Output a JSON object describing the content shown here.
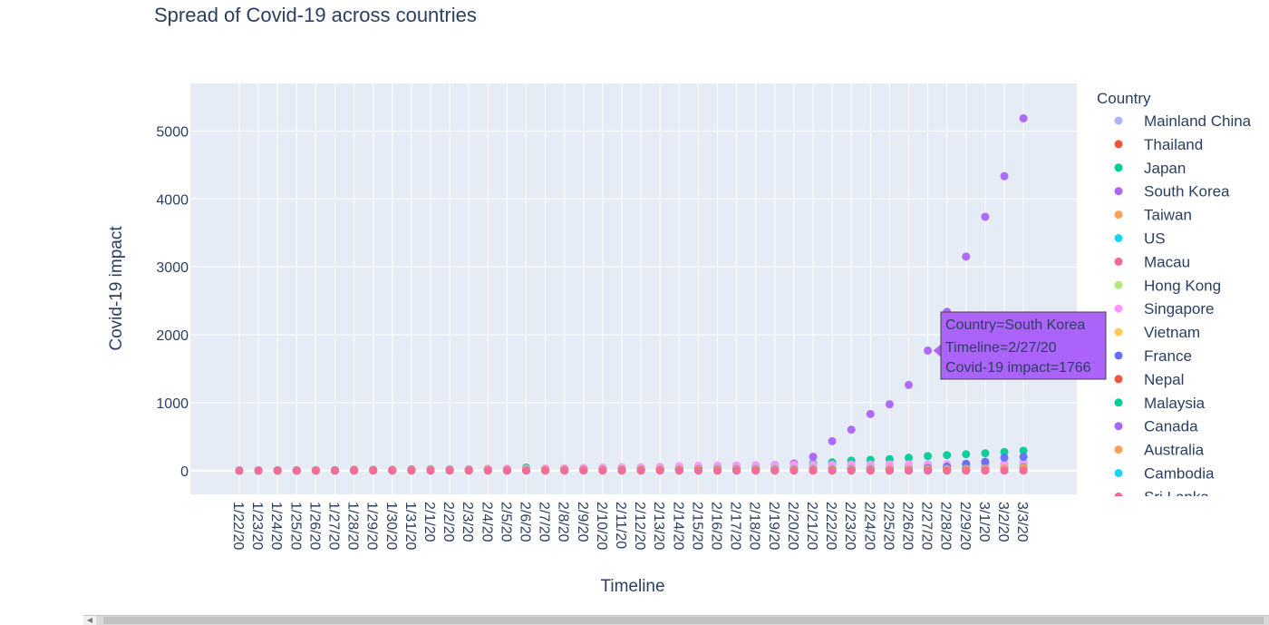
{
  "chart_data": {
    "type": "scatter",
    "title": "Spread of Covid-19 across countries",
    "xlabel": "Timeline",
    "ylabel": "Covid-19 impact",
    "ylim": [
      -350,
      5700
    ],
    "yticks": [
      0,
      1000,
      2000,
      3000,
      4000,
      5000
    ],
    "grid": true,
    "legend_title": "Country",
    "legend_position": "right",
    "categories": [
      "1/22/20",
      "1/23/20",
      "1/24/20",
      "1/25/20",
      "1/26/20",
      "1/27/20",
      "1/28/20",
      "1/29/20",
      "1/30/20",
      "1/31/20",
      "2/1/20",
      "2/2/20",
      "2/3/20",
      "2/4/20",
      "2/5/20",
      "2/6/20",
      "2/7/20",
      "2/8/20",
      "2/9/20",
      "2/10/20",
      "2/11/20",
      "2/12/20",
      "2/13/20",
      "2/14/20",
      "2/15/20",
      "2/16/20",
      "2/17/20",
      "2/18/20",
      "2/19/20",
      "2/20/20",
      "2/21/20",
      "2/22/20",
      "2/23/20",
      "2/24/20",
      "2/25/20",
      "2/26/20",
      "2/27/20",
      "2/28/20",
      "2/29/20",
      "3/1/20",
      "3/2/20",
      "3/3/20"
    ],
    "series": [
      {
        "name": "Mainland China",
        "color": "#aab4f7",
        "legend_dimmed": true,
        "values": []
      },
      {
        "name": "Thailand",
        "color": "#ef553b",
        "values": [
          2,
          3,
          5,
          7,
          8,
          8,
          14,
          14,
          14,
          19,
          19,
          19,
          19,
          25,
          25,
          25,
          25,
          32,
          32,
          32,
          33,
          33,
          33,
          33,
          34,
          34,
          35,
          35,
          35,
          35,
          35,
          35,
          35,
          35,
          37,
          40,
          40,
          41,
          42,
          42,
          43,
          43
        ]
      },
      {
        "name": "Japan",
        "color": "#00cc96",
        "values": [
          2,
          1,
          2,
          2,
          4,
          4,
          7,
          7,
          11,
          15,
          20,
          20,
          20,
          22,
          22,
          45,
          25,
          25,
          26,
          26,
          26,
          28,
          28,
          29,
          43,
          59,
          66,
          74,
          84,
          94,
          105,
          122,
          147,
          159,
          170,
          189,
          214,
          228,
          241,
          256,
          274,
          293
        ]
      },
      {
        "name": "South Korea",
        "color": "#ab63fa",
        "values": [
          1,
          1,
          2,
          2,
          3,
          4,
          4,
          4,
          4,
          11,
          12,
          15,
          15,
          16,
          19,
          23,
          24,
          24,
          25,
          27,
          28,
          28,
          28,
          28,
          28,
          29,
          30,
          31,
          51,
          104,
          204,
          433,
          602,
          833,
          977,
          1261,
          1766,
          2337,
          3150,
          3736,
          4335,
          5186
        ]
      },
      {
        "name": "Taiwan",
        "color": "#ffa15a",
        "values": [
          1,
          1,
          3,
          3,
          4,
          5,
          8,
          8,
          9,
          10,
          10,
          10,
          10,
          11,
          11,
          16,
          16,
          17,
          18,
          18,
          18,
          18,
          18,
          18,
          18,
          18,
          20,
          22,
          23,
          24,
          26,
          26,
          28,
          30,
          31,
          32,
          32,
          34,
          39,
          40,
          41,
          42
        ]
      },
      {
        "name": "US",
        "color": "#19d3f3",
        "values": [
          1,
          1,
          2,
          2,
          5,
          5,
          5,
          5,
          5,
          6,
          8,
          8,
          11,
          11,
          11,
          12,
          12,
          12,
          12,
          12,
          13,
          13,
          14,
          15,
          15,
          15,
          15,
          15,
          15,
          15,
          15,
          35,
          35,
          35,
          53,
          57,
          60,
          60,
          68,
          74,
          98,
          118
        ]
      },
      {
        "name": "Macau",
        "color": "#ff6692",
        "values": [
          1,
          2,
          2,
          2,
          5,
          6,
          7,
          7,
          7,
          7,
          7,
          8,
          8,
          10,
          10,
          10,
          10,
          10,
          10,
          10,
          10,
          10,
          10,
          10,
          10,
          10,
          10,
          10,
          10,
          10,
          10,
          10,
          10,
          10,
          10,
          10,
          10,
          10,
          10,
          10,
          10,
          10
        ]
      },
      {
        "name": "Hong Kong",
        "color": "#b6e880",
        "values": [
          0,
          2,
          2,
          5,
          8,
          8,
          8,
          10,
          10,
          12,
          13,
          15,
          15,
          17,
          21,
          24,
          25,
          26,
          29,
          38,
          49,
          50,
          53,
          56,
          56,
          57,
          60,
          62,
          65,
          68,
          69,
          69,
          74,
          79,
          84,
          91,
          92,
          94,
          95,
          98,
          100,
          101
        ]
      },
      {
        "name": "Singapore",
        "color": "#ff97ff",
        "values": [
          0,
          1,
          3,
          3,
          4,
          5,
          7,
          7,
          10,
          13,
          16,
          18,
          18,
          24,
          28,
          28,
          30,
          33,
          40,
          45,
          47,
          50,
          58,
          67,
          72,
          75,
          77,
          81,
          84,
          84,
          85,
          85,
          89,
          89,
          91,
          93,
          93,
          93,
          102,
          106,
          108,
          110
        ]
      },
      {
        "name": "Vietnam",
        "color": "#fecb52",
        "values": [
          0,
          2,
          2,
          2,
          2,
          2,
          2,
          2,
          2,
          2,
          6,
          6,
          8,
          8,
          10,
          10,
          13,
          13,
          14,
          15,
          15,
          15,
          16,
          16,
          16,
          16,
          16,
          16,
          16,
          16,
          16,
          16,
          16,
          16,
          16,
          16,
          16,
          16,
          16,
          16,
          16,
          16
        ]
      },
      {
        "name": "France",
        "color": "#636efa",
        "values": [
          0,
          0,
          2,
          3,
          3,
          3,
          4,
          5,
          5,
          5,
          6,
          6,
          6,
          6,
          6,
          6,
          6,
          11,
          11,
          11,
          11,
          11,
          11,
          11,
          12,
          12,
          12,
          12,
          12,
          12,
          12,
          12,
          12,
          12,
          14,
          18,
          38,
          57,
          100,
          130,
          191,
          204
        ]
      },
      {
        "name": "Nepal",
        "color": "#ef553b",
        "values": [
          0,
          0,
          0,
          1,
          1,
          1,
          1,
          1,
          1,
          1,
          1,
          1,
          1,
          1,
          1,
          1,
          1,
          1,
          1,
          1,
          1,
          1,
          1,
          1,
          1,
          1,
          1,
          1,
          1,
          1,
          1,
          1,
          1,
          1,
          1,
          1,
          1,
          1,
          1,
          1,
          1,
          1
        ]
      },
      {
        "name": "Malaysia",
        "color": "#00cc96",
        "values": [
          0,
          0,
          0,
          3,
          4,
          4,
          4,
          7,
          8,
          8,
          8,
          8,
          8,
          10,
          12,
          12,
          12,
          16,
          16,
          18,
          18,
          18,
          19,
          19,
          22,
          22,
          22,
          22,
          22,
          22,
          22,
          22,
          22,
          22,
          22,
          22,
          23,
          25,
          29,
          29,
          29,
          50
        ]
      },
      {
        "name": "Canada",
        "color": "#ab63fa",
        "values": [
          0,
          0,
          0,
          0,
          1,
          1,
          2,
          2,
          2,
          4,
          4,
          4,
          4,
          4,
          5,
          5,
          7,
          7,
          7,
          7,
          7,
          7,
          7,
          7,
          7,
          7,
          7,
          7,
          8,
          8,
          9,
          9,
          9,
          10,
          11,
          11,
          13,
          14,
          20,
          24,
          27,
          30
        ]
      },
      {
        "name": "Australia",
        "color": "#ffa15a",
        "values": [
          0,
          0,
          0,
          4,
          5,
          5,
          5,
          6,
          9,
          9,
          12,
          12,
          12,
          13,
          13,
          14,
          15,
          15,
          15,
          15,
          15,
          15,
          15,
          15,
          15,
          15,
          15,
          15,
          15,
          15,
          15,
          15,
          15,
          15,
          22,
          22,
          23,
          23,
          25,
          27,
          30,
          39
        ]
      },
      {
        "name": "Cambodia",
        "color": "#19d3f3",
        "values": [
          0,
          0,
          0,
          0,
          0,
          1,
          1,
          1,
          1,
          1,
          1,
          1,
          1,
          1,
          1,
          1,
          1,
          1,
          1,
          1,
          1,
          1,
          1,
          1,
          1,
          1,
          1,
          1,
          1,
          1,
          1,
          1,
          1,
          1,
          1,
          1,
          1,
          1,
          1,
          1,
          1,
          1
        ]
      },
      {
        "name": "Sri Lanka",
        "color": "#ff6692",
        "values": [
          0,
          0,
          0,
          0,
          0,
          1,
          1,
          1,
          1,
          1,
          1,
          1,
          1,
          1,
          1,
          1,
          1,
          1,
          1,
          1,
          1,
          1,
          1,
          1,
          1,
          1,
          1,
          1,
          1,
          1,
          1,
          1,
          1,
          1,
          1,
          1,
          1,
          1,
          1,
          1,
          1,
          1
        ]
      }
    ],
    "tooltip": {
      "line1": "Country=South Korea",
      "line2": "Timeline=2/27/20",
      "line3": "Covid-19 impact=1766",
      "color": "#ab63fa"
    }
  }
}
